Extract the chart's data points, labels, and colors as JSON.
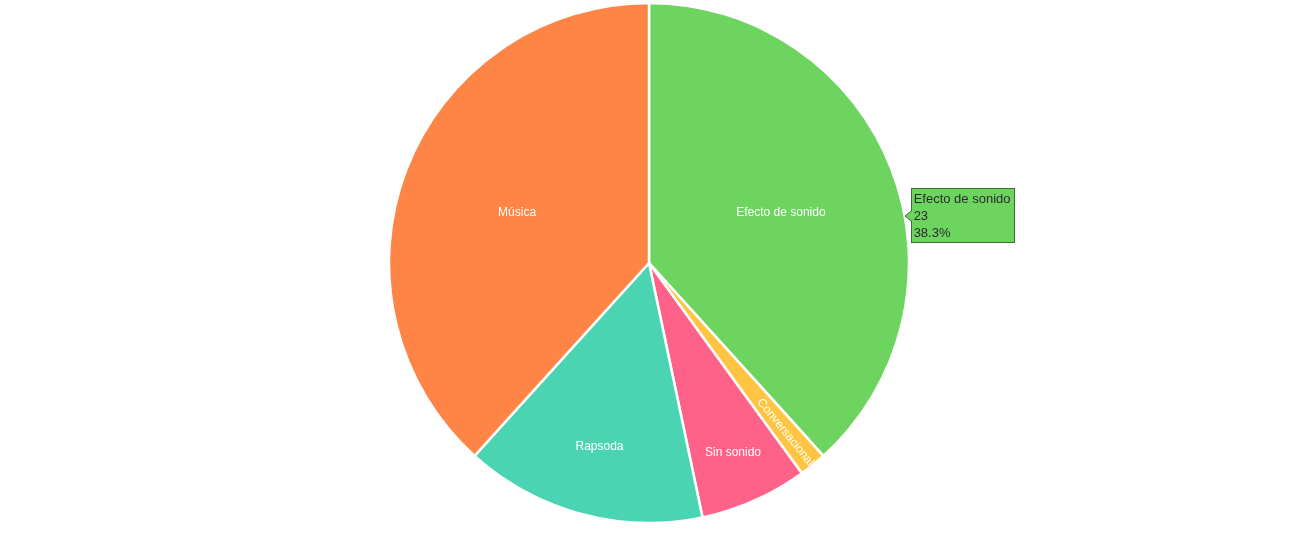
{
  "chart_data": {
    "type": "pie",
    "categories": [
      "Efecto de sonido",
      "Conversacional",
      "Sin sonido",
      "Rapsoda",
      "Música"
    ],
    "values": [
      38.3,
      1.7,
      6.7,
      15,
      38.3
    ],
    "colors": [
      "#6dd55f",
      "#ffc542",
      "#ff6289",
      "#4ad4b2",
      "#ff8547"
    ],
    "annotations": [
      "Efecto de sonido",
      "23",
      "38.3%"
    ]
  }
}
